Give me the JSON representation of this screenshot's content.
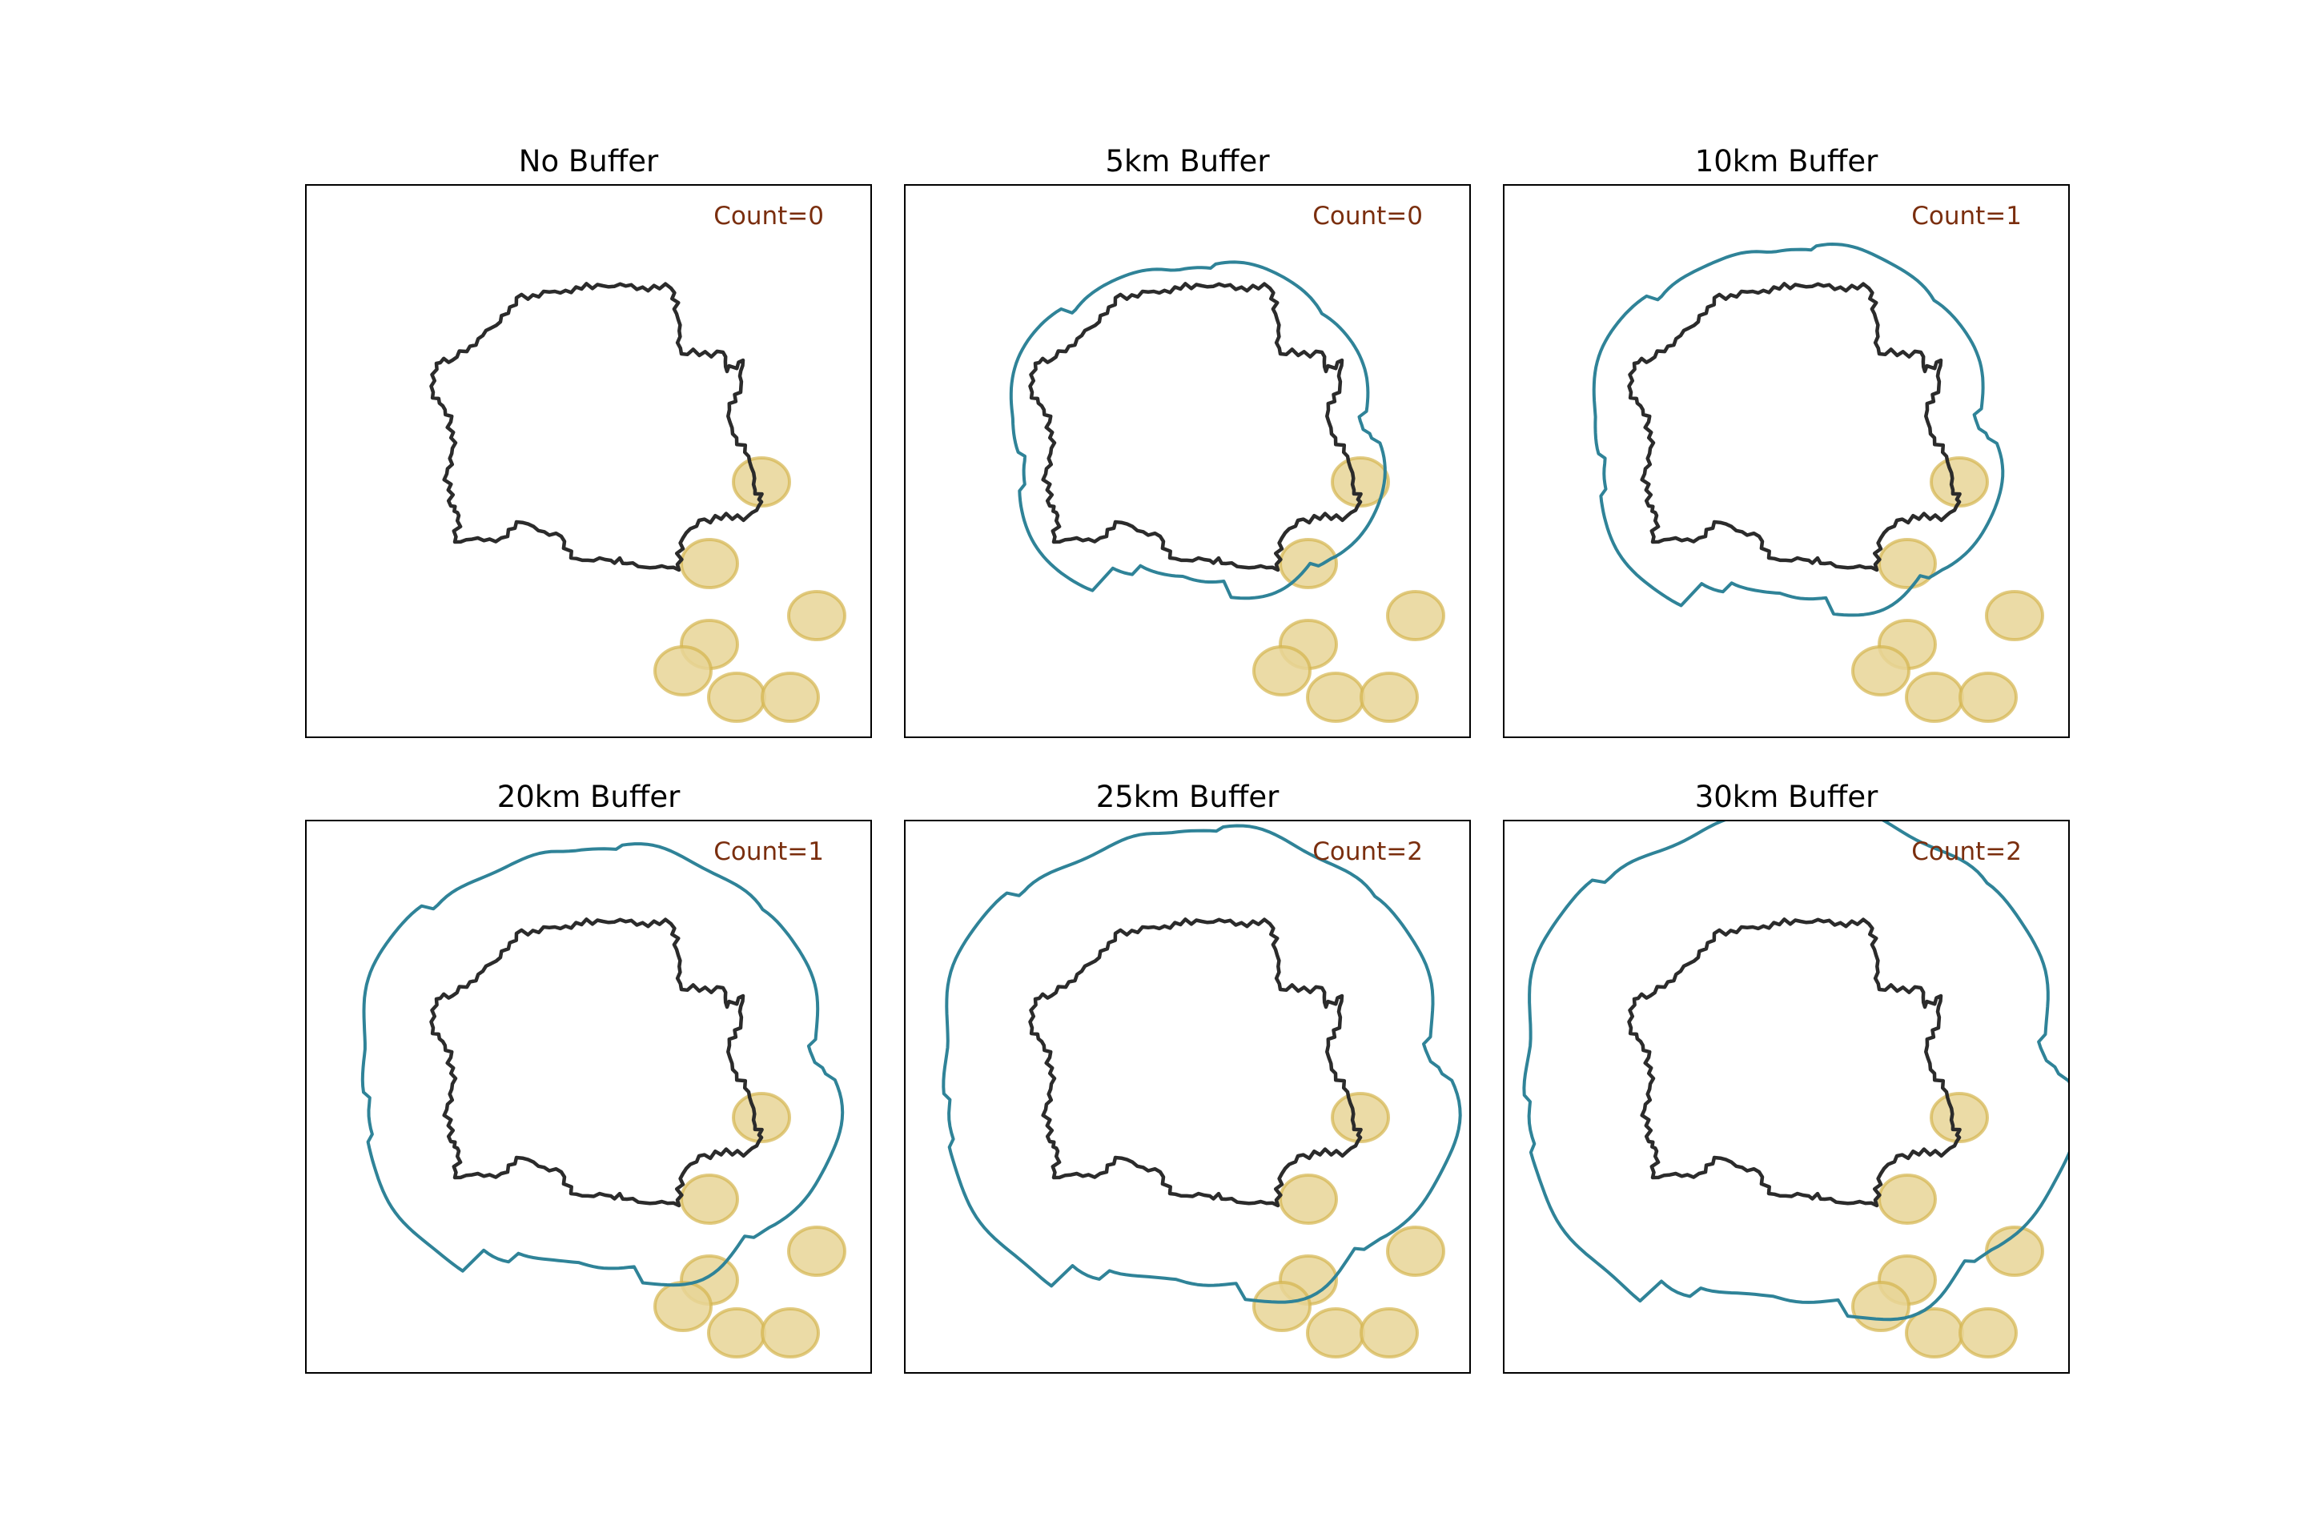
{
  "colors": {
    "outline": "#2b2b2b",
    "buffer": "#2f8398",
    "point_fill": "#e8d596",
    "point_stroke": "#d4b54e",
    "count_text": "#7a2e0e"
  },
  "panels": [
    {
      "title": "No Buffer",
      "count_text": "Count=0",
      "buffer_km": 0
    },
    {
      "title": "5km Buffer",
      "count_text": "Count=0",
      "buffer_km": 5
    },
    {
      "title": "10km Buffer",
      "count_text": "Count=1",
      "buffer_km": 10
    },
    {
      "title": "20km Buffer",
      "count_text": "Count=1",
      "buffer_km": 20
    },
    {
      "title": "25km Buffer",
      "count_text": "Count=2",
      "buffer_km": 25
    },
    {
      "title": "30km Buffer",
      "count_text": "Count=2",
      "buffer_km": 30
    }
  ]
}
